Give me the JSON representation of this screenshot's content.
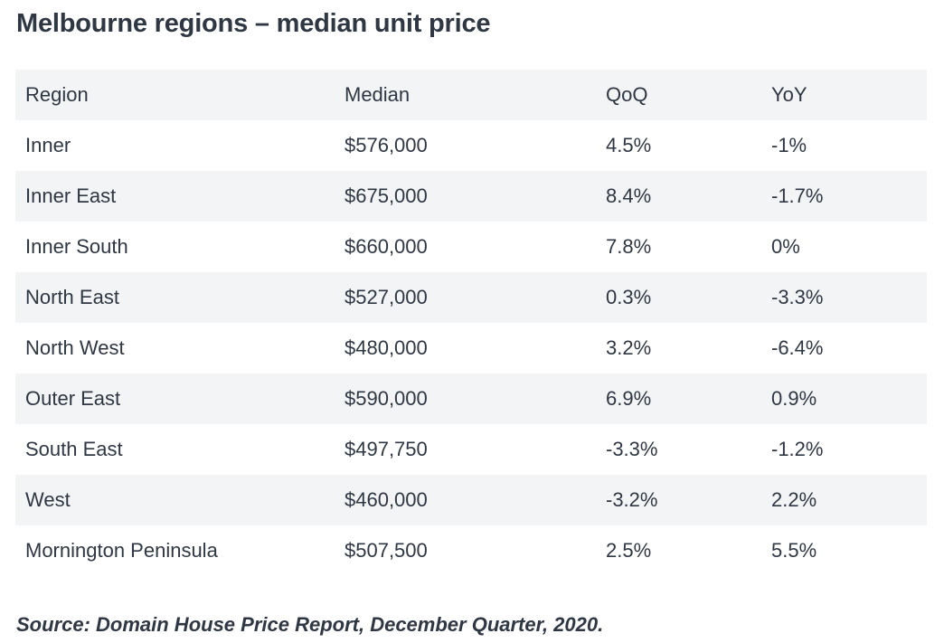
{
  "title": "Melbourne regions – median unit price",
  "table": {
    "headers": [
      "Region",
      "Median",
      "QoQ",
      "YoY"
    ],
    "rows": [
      {
        "region": "Inner",
        "median": "$576,000",
        "qoq": "4.5%",
        "yoy": "-1%"
      },
      {
        "region": "Inner East",
        "median": "$675,000",
        "qoq": "8.4%",
        "yoy": "-1.7%"
      },
      {
        "region": "Inner South",
        "median": "$660,000",
        "qoq": "7.8%",
        "yoy": "0%"
      },
      {
        "region": "North East",
        "median": "$527,000",
        "qoq": "0.3%",
        "yoy": "-3.3%"
      },
      {
        "region": "North West",
        "median": "$480,000",
        "qoq": "3.2%",
        "yoy": "-6.4%"
      },
      {
        "region": "Outer East",
        "median": "$590,000",
        "qoq": "6.9%",
        "yoy": "0.9%"
      },
      {
        "region": "South East",
        "median": "$497,750",
        "qoq": "-3.3%",
        "yoy": "-1.2%"
      },
      {
        "region": "West",
        "median": "$460,000",
        "qoq": "-3.2%",
        "yoy": "2.2%"
      },
      {
        "region": "Mornington Peninsula",
        "median": "$507,500",
        "qoq": "2.5%",
        "yoy": "5.5%"
      }
    ]
  },
  "source": "Source: Domain House Price Report, December Quarter, 2020.",
  "colors": {
    "text": "#2f3743",
    "stripe": "#f3f4f6",
    "background": "#ffffff"
  }
}
